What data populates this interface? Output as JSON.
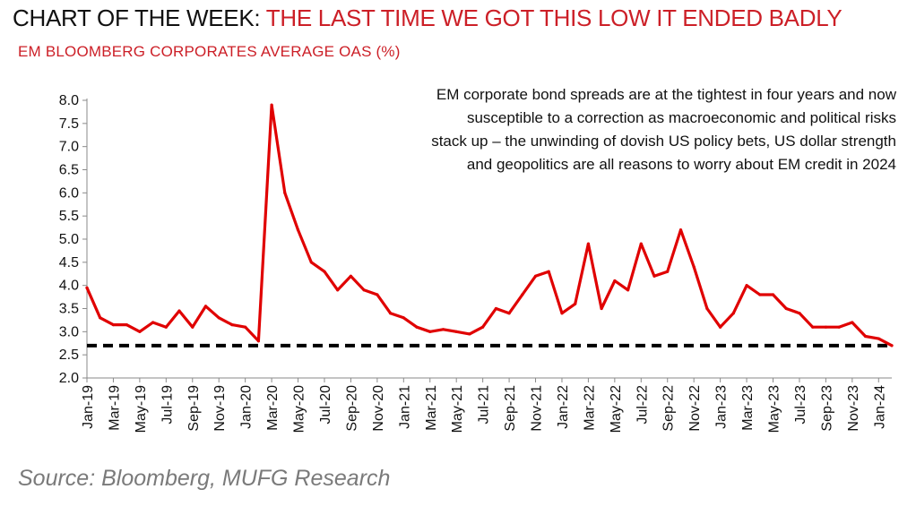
{
  "header": {
    "title_lead": "CHART OF THE WEEK: ",
    "title_highlight": "THE LAST TIME WE GOT THIS LOW IT ENDED BADLY",
    "subtitle": "EM BLOOMBERG CORPORATES AVERAGE OAS (%)"
  },
  "annotation": "EM corporate bond spreads are at the tightest in four years and now susceptible to a correction as macroeconomic and political risks stack up – the unwinding of dovish US policy bets, US dollar strength and geopolitics are all reasons to worry about EM credit in 2024",
  "source": "Source: Bloomberg, MUFG Research",
  "colors": {
    "series": "#e00000",
    "title_highlight": "#cc1f27",
    "reference_line": "#000000"
  },
  "chart_data": {
    "type": "line",
    "ylim": [
      2.0,
      8.0
    ],
    "yticks": [
      "2.0",
      "2.5",
      "3.0",
      "3.5",
      "4.0",
      "4.5",
      "5.0",
      "5.5",
      "6.0",
      "6.5",
      "7.0",
      "7.5",
      "8.0"
    ],
    "xticks": [
      "Jan-19",
      "Mar-19",
      "May-19",
      "Jul-19",
      "Sep-19",
      "Nov-19",
      "Jan-20",
      "Mar-20",
      "May-20",
      "Jul-20",
      "Sep-20",
      "Nov-20",
      "Jan-21",
      "Mar-21",
      "May-21",
      "Jul-21",
      "Sep-21",
      "Nov-21",
      "Jan-22",
      "Mar-22",
      "May-22",
      "Jul-22",
      "Sep-22",
      "Nov-22",
      "Jan-23",
      "Mar-23",
      "May-23",
      "Jul-23",
      "Sep-23",
      "Nov-23",
      "Jan-24"
    ],
    "reference_line": 2.7,
    "grid": false,
    "series": [
      {
        "x": [
          "2019-01",
          "2019-02",
          "2019-03",
          "2019-04",
          "2019-05",
          "2019-06",
          "2019-07",
          "2019-08",
          "2019-09",
          "2019-10",
          "2019-11",
          "2019-12",
          "2020-01",
          "2020-02",
          "2020-03",
          "2020-04",
          "2020-05",
          "2020-06",
          "2020-07",
          "2020-08",
          "2020-09",
          "2020-10",
          "2020-11",
          "2020-12",
          "2021-01",
          "2021-02",
          "2021-03",
          "2021-04",
          "2021-05",
          "2021-06",
          "2021-07",
          "2021-08",
          "2021-09",
          "2021-10",
          "2021-11",
          "2021-12",
          "2022-01",
          "2022-02",
          "2022-03",
          "2022-04",
          "2022-05",
          "2022-06",
          "2022-07",
          "2022-08",
          "2022-09",
          "2022-10",
          "2022-11",
          "2022-12",
          "2023-01",
          "2023-02",
          "2023-03",
          "2023-04",
          "2023-05",
          "2023-06",
          "2023-07",
          "2023-08",
          "2023-09",
          "2023-10",
          "2023-11",
          "2023-12",
          "2024-01",
          "2024-02"
        ],
        "values": [
          3.95,
          3.3,
          3.15,
          3.15,
          3.0,
          3.2,
          3.1,
          3.45,
          3.1,
          3.55,
          3.3,
          3.15,
          3.1,
          2.8,
          7.9,
          6.0,
          5.2,
          4.5,
          4.3,
          3.9,
          4.2,
          3.9,
          3.8,
          3.4,
          3.3,
          3.1,
          3.0,
          3.05,
          3.0,
          2.95,
          3.1,
          3.5,
          3.4,
          3.8,
          4.2,
          4.3,
          3.4,
          3.6,
          4.9,
          3.5,
          4.1,
          3.9,
          4.9,
          4.2,
          4.3,
          5.2,
          4.4,
          3.5,
          3.1,
          3.4,
          4.0,
          3.8,
          3.8,
          3.5,
          3.4,
          3.1,
          3.1,
          3.1,
          3.2,
          2.9,
          2.85,
          2.7
        ]
      }
    ]
  }
}
